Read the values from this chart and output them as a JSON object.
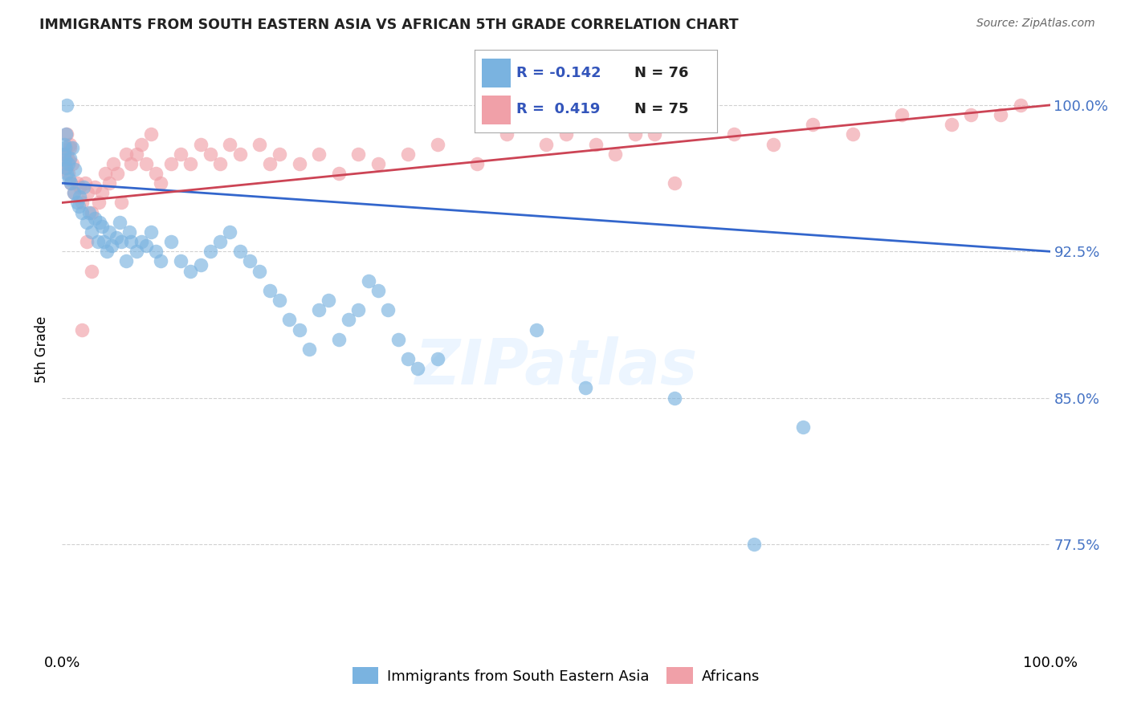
{
  "title": "IMMIGRANTS FROM SOUTH EASTERN ASIA VS AFRICAN 5TH GRADE CORRELATION CHART",
  "source": "Source: ZipAtlas.com",
  "ylabel": "5th Grade",
  "ytick_labels": [
    "100.0%",
    "92.5%",
    "85.0%",
    "77.5%"
  ],
  "ytick_values": [
    100.0,
    92.5,
    85.0,
    77.5
  ],
  "xlim": [
    0.0,
    1.0
  ],
  "ylim": [
    72.0,
    103.0
  ],
  "legend_blue_r": "-0.142",
  "legend_blue_n": "76",
  "legend_pink_r": "0.419",
  "legend_pink_n": "75",
  "legend_label_blue": "Immigrants from South Eastern Asia",
  "legend_label_pink": "Africans",
  "blue_color": "#7ab3e0",
  "pink_color": "#f0a0a8",
  "trendline_blue_color": "#3366cc",
  "trendline_pink_color": "#cc4455",
  "background_color": "#ffffff",
  "grid_color": "#cccccc",
  "blue_scatter_x": [
    0.002,
    0.003,
    0.004,
    0.005,
    0.006,
    0.007,
    0.008,
    0.009,
    0.01,
    0.012,
    0.013,
    0.015,
    0.017,
    0.018,
    0.02,
    0.022,
    0.025,
    0.027,
    0.03,
    0.033,
    0.036,
    0.038,
    0.04,
    0.042,
    0.045,
    0.048,
    0.05,
    0.055,
    0.058,
    0.06,
    0.065,
    0.068,
    0.07,
    0.075,
    0.08,
    0.085,
    0.09,
    0.095,
    0.1,
    0.11,
    0.12,
    0.13,
    0.14,
    0.15,
    0.16,
    0.17,
    0.18,
    0.19,
    0.2,
    0.21,
    0.22,
    0.23,
    0.24,
    0.25,
    0.26,
    0.27,
    0.28,
    0.29,
    0.3,
    0.31,
    0.32,
    0.33,
    0.34,
    0.35,
    0.36,
    0.38,
    0.48,
    0.53,
    0.62,
    0.7,
    0.75,
    0.002,
    0.003,
    0.004,
    0.005
  ],
  "blue_scatter_y": [
    97.5,
    97.2,
    96.8,
    96.5,
    97.0,
    96.2,
    97.3,
    96.0,
    97.8,
    95.5,
    96.7,
    95.0,
    94.8,
    95.3,
    94.5,
    95.8,
    94.0,
    94.5,
    93.5,
    94.2,
    93.0,
    94.0,
    93.8,
    93.0,
    92.5,
    93.5,
    92.8,
    93.2,
    94.0,
    93.0,
    92.0,
    93.5,
    93.0,
    92.5,
    93.0,
    92.8,
    93.5,
    92.5,
    92.0,
    93.0,
    92.0,
    91.5,
    91.8,
    92.5,
    93.0,
    93.5,
    92.5,
    92.0,
    91.5,
    90.5,
    90.0,
    89.0,
    88.5,
    87.5,
    89.5,
    90.0,
    88.0,
    89.0,
    89.5,
    91.0,
    90.5,
    89.5,
    88.0,
    87.0,
    86.5,
    87.0,
    88.5,
    85.5,
    85.0,
    77.5,
    83.5,
    98.0,
    97.8,
    98.5,
    100.0
  ],
  "pink_scatter_x": [
    0.002,
    0.003,
    0.004,
    0.005,
    0.006,
    0.007,
    0.008,
    0.009,
    0.01,
    0.012,
    0.015,
    0.018,
    0.02,
    0.023,
    0.026,
    0.03,
    0.033,
    0.037,
    0.04,
    0.044,
    0.048,
    0.052,
    0.056,
    0.06,
    0.065,
    0.07,
    0.075,
    0.08,
    0.085,
    0.09,
    0.095,
    0.1,
    0.11,
    0.12,
    0.13,
    0.14,
    0.15,
    0.16,
    0.17,
    0.18,
    0.2,
    0.21,
    0.22,
    0.24,
    0.26,
    0.28,
    0.3,
    0.32,
    0.35,
    0.38,
    0.42,
    0.45,
    0.49,
    0.51,
    0.56,
    0.6,
    0.64,
    0.68,
    0.72,
    0.76,
    0.8,
    0.85,
    0.9,
    0.92,
    0.95,
    0.97,
    0.54,
    0.58,
    0.62,
    0.02,
    0.025,
    0.03,
    0.005,
    0.008
  ],
  "pink_scatter_y": [
    97.5,
    97.0,
    96.8,
    97.5,
    96.5,
    97.2,
    97.8,
    96.0,
    97.0,
    95.5,
    96.0,
    95.8,
    95.0,
    96.0,
    95.5,
    94.5,
    95.8,
    95.0,
    95.5,
    96.5,
    96.0,
    97.0,
    96.5,
    95.0,
    97.5,
    97.0,
    97.5,
    98.0,
    97.0,
    98.5,
    96.5,
    96.0,
    97.0,
    97.5,
    97.0,
    98.0,
    97.5,
    97.0,
    98.0,
    97.5,
    98.0,
    97.0,
    97.5,
    97.0,
    97.5,
    96.5,
    97.5,
    97.0,
    97.5,
    98.0,
    97.0,
    98.5,
    98.0,
    98.5,
    97.5,
    98.5,
    99.0,
    98.5,
    98.0,
    99.0,
    98.5,
    99.5,
    99.0,
    99.5,
    99.5,
    100.0,
    98.0,
    98.5,
    96.0,
    88.5,
    93.0,
    91.5,
    98.5,
    98.0
  ],
  "blue_trend_x": [
    0.0,
    1.0
  ],
  "blue_trend_y": [
    96.0,
    92.5
  ],
  "pink_trend_x": [
    0.0,
    1.0
  ],
  "pink_trend_y": [
    95.0,
    100.0
  ]
}
